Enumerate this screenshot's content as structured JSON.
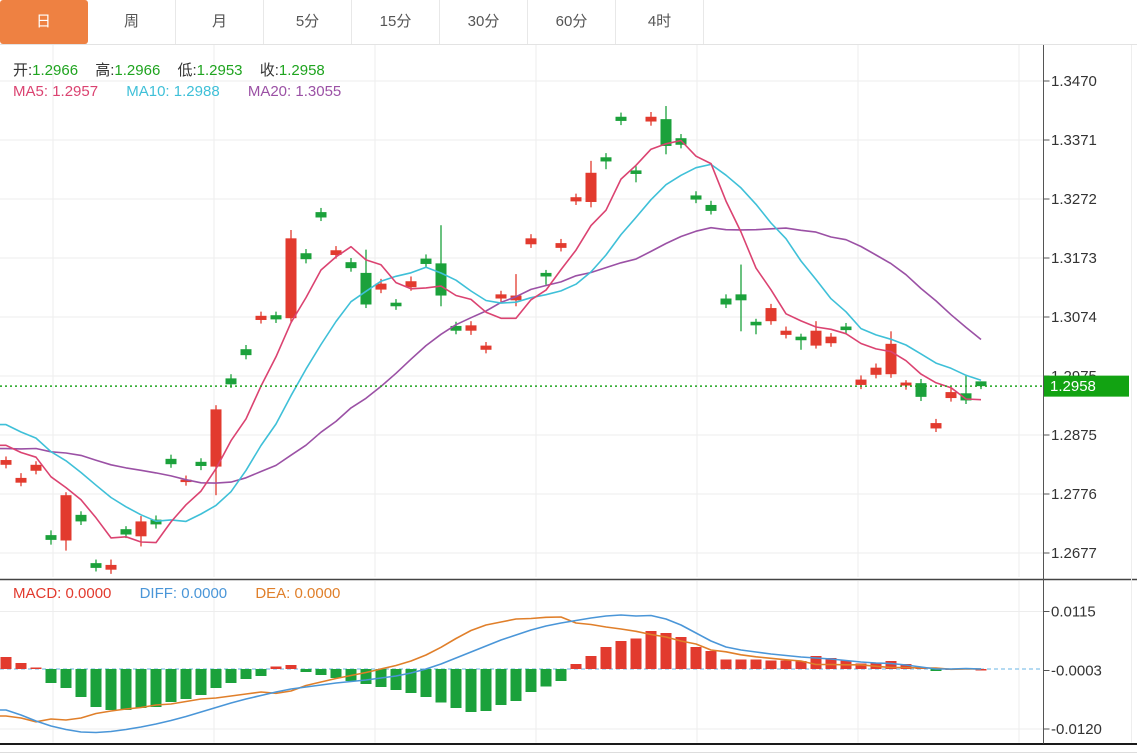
{
  "tabs": [
    {
      "label": "日",
      "active": true
    },
    {
      "label": "周",
      "active": false
    },
    {
      "label": "月",
      "active": false
    },
    {
      "label": "5分",
      "active": false
    },
    {
      "label": "15分",
      "active": false
    },
    {
      "label": "30分",
      "active": false
    },
    {
      "label": "60分",
      "active": false
    },
    {
      "label": "4时",
      "active": false
    }
  ],
  "ohlc_legend": {
    "open_label": "开:",
    "open": "1.2966",
    "high_label": "高:",
    "high": "1.2966",
    "low_label": "低:",
    "low": "1.2953",
    "close_label": "收:",
    "close": "1.2958"
  },
  "ma_legend": {
    "ma5_label": "MA5:",
    "ma5": "1.2957",
    "ma10_label": "MA10:",
    "ma10": "1.2988",
    "ma20_label": "MA20:",
    "ma20": "1.3055"
  },
  "macd_legend": {
    "macd_label": "MACD:",
    "macd": "0.0000",
    "diff_label": "DIFF:",
    "diff": "0.0000",
    "dea_label": "DEA:",
    "dea": "0.0000"
  },
  "price_badge": "1.2958",
  "colors": {
    "tab_active_bg": "#ee8142",
    "candle_up": "#e23a2e",
    "candle_down": "#1ba13b",
    "ma5_line": "#db4371",
    "ma10_line": "#3fc0d8",
    "ma20_line": "#9b51a5",
    "diff_line": "#4a96d8",
    "dea_line": "#e07f2a",
    "price_dotted_line": "#1fa41f",
    "macd_zero_dashed_line": "#86c3ea",
    "badge_bg": "#12a312",
    "axis_text": "#333333",
    "grid": "#ededed"
  },
  "chart_data": {
    "type": "candlestick_with_macd",
    "title": "",
    "legend_position": "top-left overlay",
    "grid": "on",
    "price_axis_ticks": [
      "1.3470",
      "1.3371",
      "1.3272",
      "1.3173",
      "1.3074",
      "1.2975",
      "1.2875",
      "1.2776",
      "1.2677"
    ],
    "price_axis_max": 1.347,
    "price_axis_tick_step": 0.0099,
    "macd_axis_ticks": [
      "0.0115",
      "-0.0003",
      "-0.0120"
    ],
    "macd_axis_tick_values": [
      0.0115,
      -0.0003,
      -0.012
    ],
    "last_price": 1.2958,
    "candles_ohlc": [
      [
        1.2826,
        1.284,
        1.282,
        1.2834
      ],
      [
        1.2796,
        1.2812,
        1.279,
        1.2804
      ],
      [
        1.2816,
        1.2832,
        1.281,
        1.2826
      ],
      [
        1.2708,
        1.2716,
        1.2692,
        1.27
      ],
      [
        1.2699,
        1.278,
        1.2682,
        1.2775
      ],
      [
        1.2742,
        1.2748,
        1.2725,
        1.2731
      ],
      [
        1.2661,
        1.2667,
        1.2647,
        1.2653
      ],
      [
        1.265,
        1.2667,
        1.2643,
        1.2658
      ],
      [
        1.2718,
        1.2723,
        1.2703,
        1.2709
      ],
      [
        1.2706,
        1.274,
        1.2689,
        1.2731
      ],
      [
        1.2734,
        1.2741,
        1.2719,
        1.2726
      ],
      [
        1.2836,
        1.2843,
        1.2821,
        1.2827
      ],
      [
        1.2797,
        1.2808,
        1.2791,
        1.2801
      ],
      [
        1.2831,
        1.2837,
        1.2817,
        1.2824
      ],
      [
        1.2823,
        1.2926,
        1.2775,
        1.2919
      ],
      [
        1.2971,
        1.2978,
        1.2955,
        1.2961
      ],
      [
        1.302,
        1.3027,
        1.3003,
        1.301
      ],
      [
        1.3069,
        1.3083,
        1.3063,
        1.3076
      ],
      [
        1.3077,
        1.3083,
        1.3064,
        1.307
      ],
      [
        1.3072,
        1.322,
        1.3066,
        1.3206
      ],
      [
        1.3181,
        1.3188,
        1.3164,
        1.3171
      ],
      [
        1.325,
        1.3257,
        1.3235,
        1.3241
      ],
      [
        1.3178,
        1.3193,
        1.3172,
        1.3186
      ],
      [
        1.3166,
        1.3173,
        1.315,
        1.3156
      ],
      [
        1.3148,
        1.3187,
        1.3089,
        1.3095
      ],
      [
        1.312,
        1.3138,
        1.3114,
        1.313
      ],
      [
        1.3098,
        1.3104,
        1.3086,
        1.3092
      ],
      [
        1.3124,
        1.3142,
        1.3118,
        1.3134
      ],
      [
        1.3172,
        1.3179,
        1.3157,
        1.3163
      ],
      [
        1.3164,
        1.3228,
        1.3092,
        1.311
      ],
      [
        1.3059,
        1.3066,
        1.3045,
        1.3051
      ],
      [
        1.3051,
        1.3067,
        1.3044,
        1.306
      ],
      [
        1.3019,
        1.3032,
        1.3013,
        1.3026
      ],
      [
        1.3105,
        1.3118,
        1.3099,
        1.3112
      ],
      [
        1.3102,
        1.3146,
        1.3092,
        1.311
      ],
      [
        1.3196,
        1.3213,
        1.319,
        1.3206
      ],
      [
        1.3148,
        1.3153,
        1.3128,
        1.3142
      ],
      [
        1.319,
        1.3205,
        1.3184,
        1.3198
      ],
      [
        1.3268,
        1.3281,
        1.3262,
        1.3275
      ],
      [
        1.3267,
        1.3336,
        1.3258,
        1.3316
      ],
      [
        1.3342,
        1.3349,
        1.3322,
        1.3335
      ],
      [
        1.341,
        1.3417,
        1.3396,
        1.3403
      ],
      [
        1.332,
        1.3327,
        1.33,
        1.3314
      ],
      [
        1.3402,
        1.3418,
        1.3395,
        1.341
      ],
      [
        1.3406,
        1.3428,
        1.3347,
        1.3361
      ],
      [
        1.3374,
        1.3381,
        1.3357,
        1.3363
      ],
      [
        1.3278,
        1.3285,
        1.3265,
        1.3271
      ],
      [
        1.3262,
        1.3269,
        1.3246,
        1.3252
      ],
      [
        1.3105,
        1.3112,
        1.3089,
        1.3095
      ],
      [
        1.3112,
        1.3162,
        1.305,
        1.3102
      ],
      [
        1.3066,
        1.3071,
        1.3045,
        1.306
      ],
      [
        1.3067,
        1.3096,
        1.3061,
        1.3089
      ],
      [
        1.3044,
        1.3058,
        1.3038,
        1.3051
      ],
      [
        1.3041,
        1.3046,
        1.3019,
        1.3035
      ],
      [
        1.3026,
        1.3067,
        1.3021,
        1.3051
      ],
      [
        1.303,
        1.3047,
        1.3024,
        1.3041
      ],
      [
        1.3058,
        1.3064,
        1.3046,
        1.3052
      ],
      [
        1.296,
        1.2976,
        1.2953,
        1.2969
      ],
      [
        1.2977,
        1.2996,
        1.2971,
        1.2989
      ],
      [
        1.2978,
        1.305,
        1.2972,
        1.3029
      ],
      [
        1.2959,
        1.2968,
        1.2952,
        1.2964
      ],
      [
        1.2963,
        1.297,
        1.2933,
        1.294
      ],
      [
        1.2887,
        1.2903,
        1.2881,
        1.2896
      ],
      [
        1.2938,
        1.2955,
        1.2932,
        1.2948
      ],
      [
        1.2946,
        1.2976,
        1.2928,
        1.2934
      ],
      [
        1.2966,
        1.2966,
        1.2953,
        1.2958
      ]
    ],
    "ma_prehistory_closes": [
      1.2813,
      1.2813,
      1.2813,
      1.2813,
      1.2813,
      1.2813,
      1.2813,
      1.2813,
      1.2813,
      1.2813,
      1.2928,
      1.2928,
      1.2928,
      1.2928,
      1.2928,
      1.2865,
      1.2865,
      1.2865,
      1.2865
    ],
    "macd_hist": [
      0.0024,
      0.0012,
      0.0003,
      -0.0028,
      -0.0038,
      -0.0056,
      -0.0076,
      -0.0082,
      -0.0082,
      -0.0078,
      -0.0076,
      -0.0066,
      -0.006,
      -0.0052,
      -0.0038,
      -0.0028,
      -0.002,
      -0.0014,
      0.0005,
      0.0008,
      -0.0006,
      -0.0012,
      -0.0018,
      -0.0024,
      -0.003,
      -0.0036,
      -0.0042,
      -0.0048,
      -0.0056,
      -0.0067,
      -0.0078,
      -0.0086,
      -0.0084,
      -0.0072,
      -0.0064,
      -0.0046,
      -0.0035,
      -0.0024,
      0.001,
      0.0026,
      0.0044,
      0.0056,
      0.0061,
      0.0076,
      0.0072,
      0.0064,
      0.0044,
      0.0036,
      0.0019,
      0.0019,
      0.0019,
      0.0017,
      0.0017,
      0.0016,
      0.0026,
      0.0022,
      0.0017,
      0.0011,
      0.0013,
      0.0016,
      0.001,
      0.0004,
      -0.0004,
      0.0001,
      0.0002,
      0.0
    ],
    "macd_diff": [
      -0.0082,
      -0.0092,
      -0.0104,
      -0.0114,
      -0.0121,
      -0.0126,
      -0.0127,
      -0.0125,
      -0.0121,
      -0.0116,
      -0.011,
      -0.0103,
      -0.0095,
      -0.0086,
      -0.0077,
      -0.0068,
      -0.006,
      -0.0053,
      -0.0046,
      -0.004,
      -0.0036,
      -0.0032,
      -0.0028,
      -0.0025,
      -0.0022,
      -0.0018,
      -0.0014,
      -0.0008,
      0.0,
      0.001,
      0.0022,
      0.0034,
      0.0046,
      0.0058,
      0.0068,
      0.0078,
      0.0086,
      0.0092,
      0.0097,
      0.0102,
      0.0106,
      0.0108,
      0.0106,
      0.0107,
      0.01,
      0.0088,
      0.0072,
      0.0056,
      0.0044,
      0.0038,
      0.0034,
      0.003,
      0.0027,
      0.0024,
      0.0022,
      0.002,
      0.0017,
      0.0014,
      0.0012,
      0.0011,
      0.0008,
      0.0004,
      0.0,
      0.0,
      0.0001,
      0.0
    ]
  }
}
